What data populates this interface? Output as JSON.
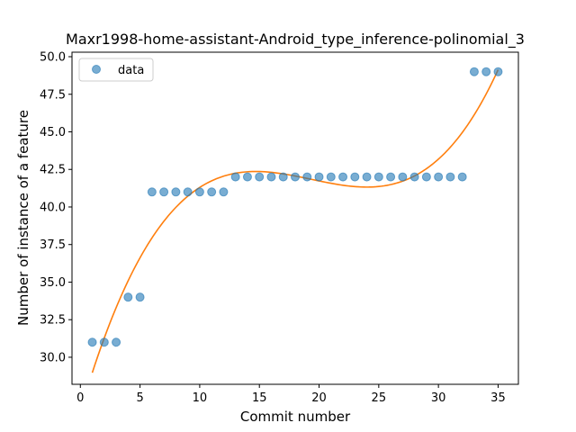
{
  "chart_data": {
    "type": "scatter",
    "title": "Maxr1998-home-assistant-Android_type_inference-polinomial_3",
    "xlabel": "Commit number",
    "ylabel": "Number of instance of a feature",
    "xlim": [
      -0.7,
      36.7
    ],
    "ylim": [
      28.2,
      50.3
    ],
    "xticks": [
      0,
      5,
      10,
      15,
      20,
      25,
      30,
      35
    ],
    "yticks": [
      30.0,
      32.5,
      35.0,
      37.5,
      40.0,
      42.5,
      45.0,
      47.5,
      50.0
    ],
    "ytick_labels": [
      "30.0",
      "32.5",
      "35.0",
      "37.5",
      "40.0",
      "42.5",
      "45.0",
      "47.5",
      "50.0"
    ],
    "legend": {
      "position": "top-left",
      "entries": [
        "data"
      ]
    },
    "series": [
      {
        "name": "data",
        "kind": "points",
        "color": "#1f77b4",
        "x": [
          1,
          2,
          3,
          4,
          5,
          6,
          7,
          8,
          9,
          10,
          11,
          12,
          13,
          14,
          15,
          16,
          17,
          18,
          19,
          20,
          21,
          22,
          23,
          24,
          25,
          26,
          27,
          28,
          29,
          30,
          31,
          32,
          33,
          34,
          35
        ],
        "y": [
          31,
          31,
          31,
          34,
          34,
          41,
          41,
          41,
          41,
          41,
          41,
          41,
          42,
          42,
          42,
          42,
          42,
          42,
          42,
          42,
          42,
          42,
          42,
          42,
          42,
          42,
          42,
          42,
          42,
          42,
          42,
          42,
          49,
          49,
          49
        ]
      },
      {
        "kind": "fit-line",
        "color": "#ff7f0e",
        "degree": 3,
        "x_range": [
          1,
          35
        ]
      }
    ]
  }
}
